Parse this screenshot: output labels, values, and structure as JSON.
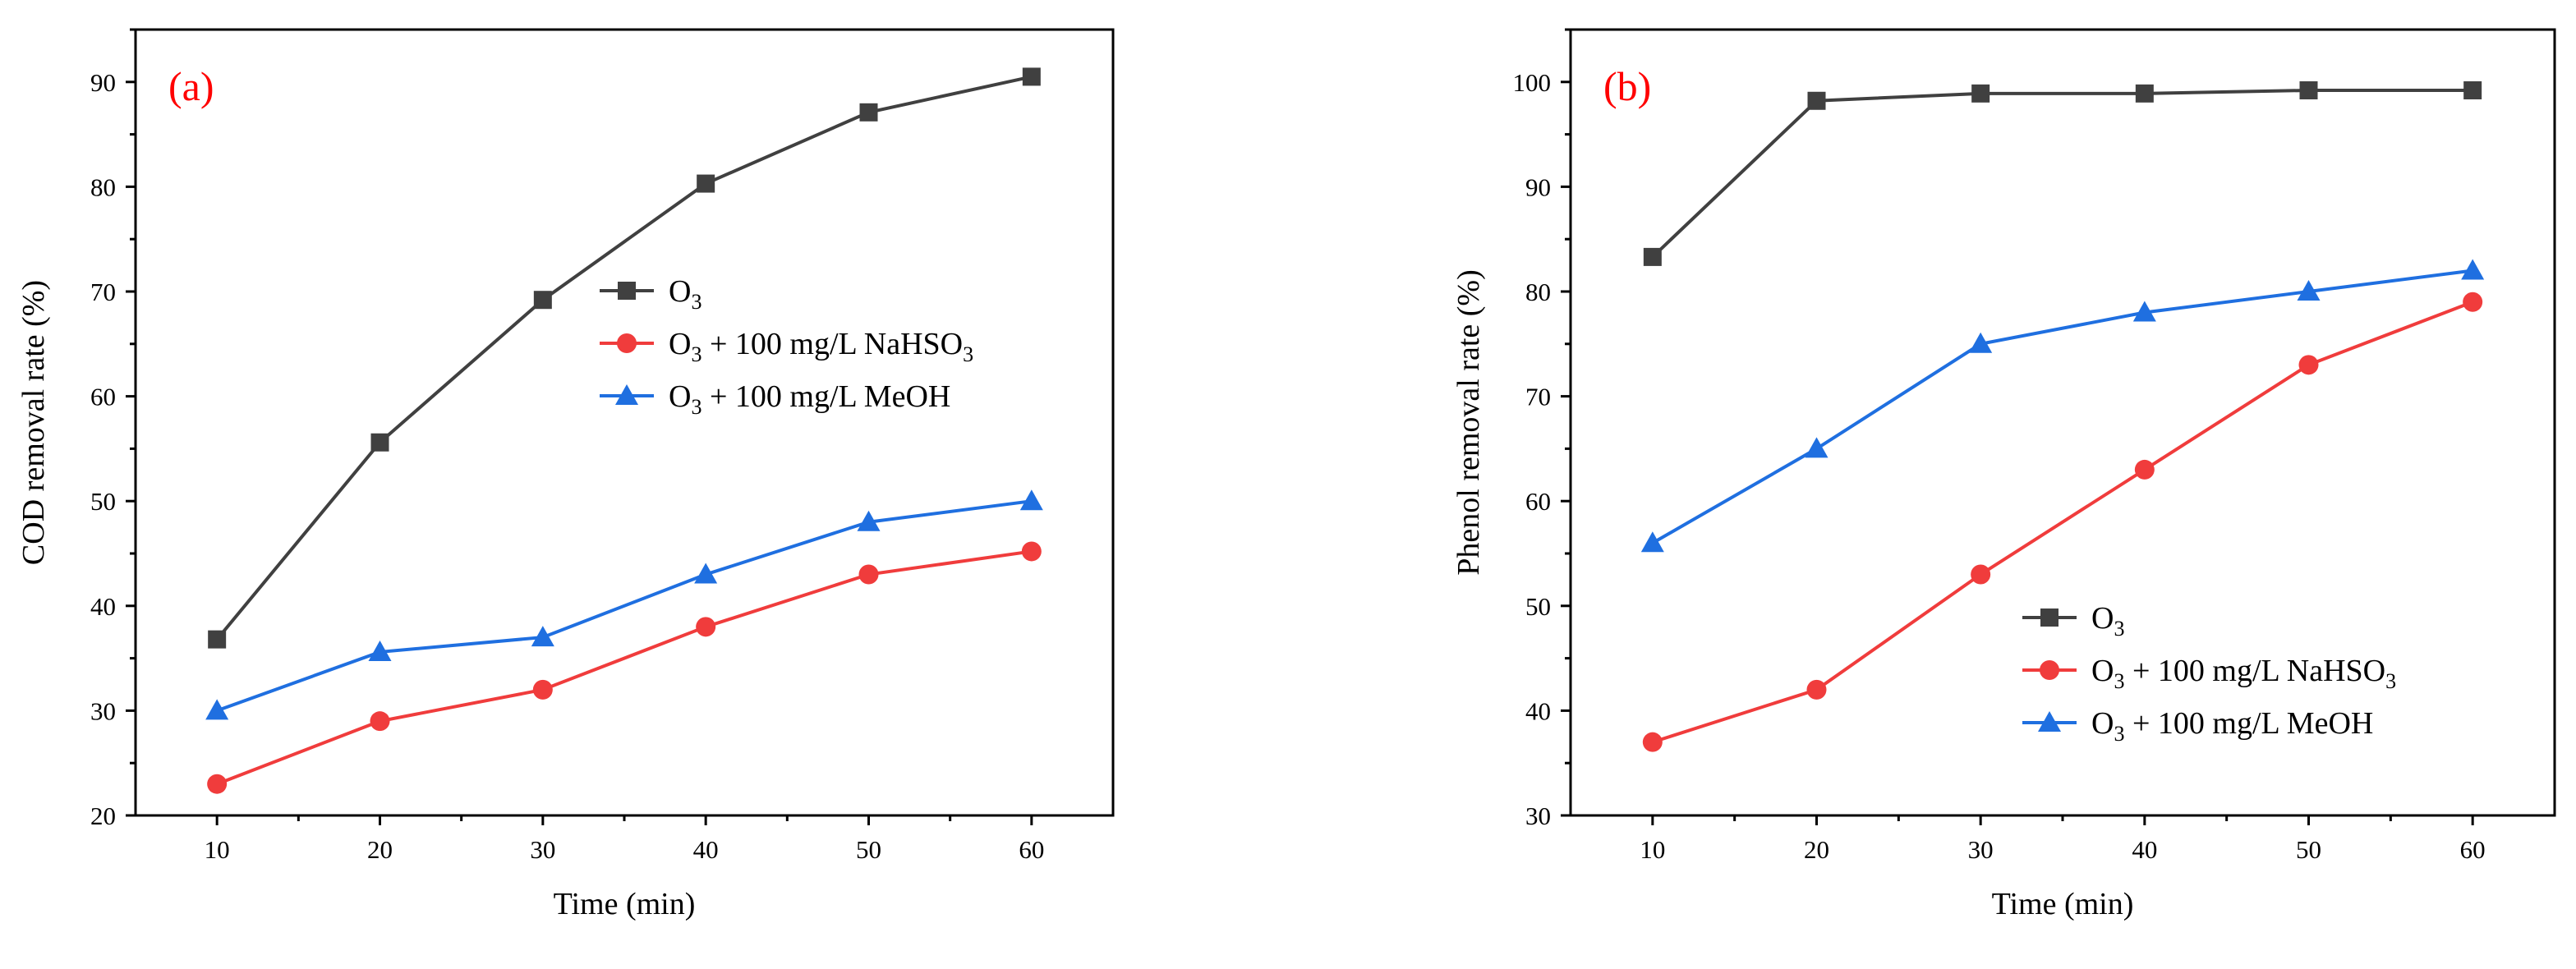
{
  "figure": {
    "description_panels": [
      "a",
      "b"
    ]
  },
  "colors": {
    "black": "#404040",
    "red": "#f03c3c",
    "blue": "#1f6fe0",
    "panel_label": "#ff0000"
  },
  "chart_data": [
    {
      "type": "line",
      "panel_label": "(a)",
      "title": "",
      "xlabel": "Time (min)",
      "ylabel": "COD removal rate (%)",
      "x": [
        10,
        20,
        30,
        40,
        50,
        60
      ],
      "xlim": [
        5,
        65
      ],
      "ylim": [
        20,
        95
      ],
      "xticks": [
        10,
        20,
        30,
        40,
        50,
        60
      ],
      "yticks": [
        20,
        30,
        40,
        50,
        60,
        70,
        80,
        90
      ],
      "legend_position": "center-right",
      "series": [
        {
          "name": "O3",
          "legend_main": "O",
          "legend_sub": "3",
          "legend_rest": "",
          "legend_sub2": "",
          "color": "#404040",
          "marker": "square",
          "values": [
            36.8,
            55.6,
            69.2,
            80.3,
            87.1,
            90.5
          ]
        },
        {
          "name": "O3 + 100 mg/L NaHSO3",
          "legend_main": "O",
          "legend_sub": "3",
          "legend_rest": " + 100 mg/L NaHSO",
          "legend_sub2": "3",
          "color": "#f03c3c",
          "marker": "circle",
          "values": [
            23.0,
            29.0,
            32.0,
            38.0,
            43.0,
            45.2
          ]
        },
        {
          "name": "O3 + 100 mg/L MeOH",
          "legend_main": "O",
          "legend_sub": "3",
          "legend_rest": " + 100 mg/L MeOH",
          "legend_sub2": "",
          "color": "#1f6fe0",
          "marker": "triangle",
          "values": [
            30.0,
            35.6,
            37.0,
            43.0,
            48.0,
            50.0
          ]
        }
      ]
    },
    {
      "type": "line",
      "panel_label": "(b)",
      "title": "",
      "xlabel": "Time (min)",
      "ylabel": "Phenol removal rate (%)",
      "x": [
        10,
        20,
        30,
        40,
        50,
        60
      ],
      "xlim": [
        5,
        65
      ],
      "ylim": [
        30,
        105
      ],
      "xticks": [
        10,
        20,
        30,
        40,
        50,
        60
      ],
      "yticks": [
        30,
        40,
        50,
        60,
        70,
        80,
        90,
        100
      ],
      "legend_position": "bottom-right",
      "series": [
        {
          "name": "O3",
          "legend_main": "O",
          "legend_sub": "3",
          "legend_rest": "",
          "legend_sub2": "",
          "color": "#404040",
          "marker": "square",
          "values": [
            83.3,
            98.2,
            98.9,
            98.9,
            99.2,
            99.2
          ]
        },
        {
          "name": "O3 + 100 mg/L NaHSO3",
          "legend_main": "O",
          "legend_sub": "3",
          "legend_rest": " + 100 mg/L NaHSO",
          "legend_sub2": "3",
          "color": "#f03c3c",
          "marker": "circle",
          "values": [
            37.0,
            42.0,
            53.0,
            63.0,
            73.0,
            79.0
          ]
        },
        {
          "name": "O3 + 100 mg/L MeOH",
          "legend_main": "O",
          "legend_sub": "3",
          "legend_rest": " + 100 mg/L MeOH",
          "legend_sub2": "",
          "color": "#1f6fe0",
          "marker": "triangle",
          "values": [
            56.0,
            65.0,
            75.0,
            78.0,
            80.0,
            82.0
          ]
        }
      ]
    }
  ]
}
